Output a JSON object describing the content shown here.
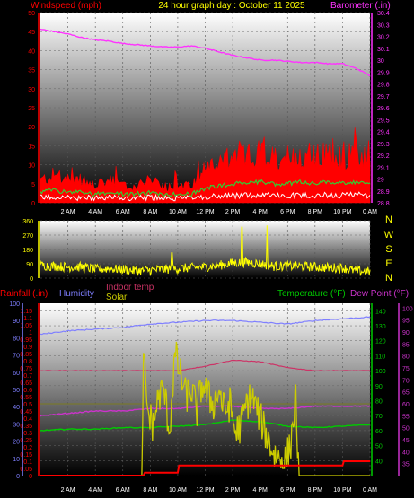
{
  "header": {
    "title": "24 hour graph day : October 11 2025",
    "left_axis_label": "Windspeed (mph)",
    "right_axis_label": "Barometer (.in)"
  },
  "colors": {
    "wind": "#ff0000",
    "gust_fill": "#ff0000",
    "wind_avg": "#33cc33",
    "wind_low": "#ffffff",
    "barometer": "#ff33ff",
    "direction": "#ffff00",
    "rain": "#ff0000",
    "humidity": "#7f7fff",
    "indoor": "#cc3366",
    "solar": "#cccc00",
    "temperature": "#00cc00",
    "dewpoint": "#cc33cc",
    "panel_top": "#ffffff",
    "panel_bottom": "#000000"
  },
  "time_axis": [
    "2 AM",
    "4 AM",
    "6 AM",
    "8 AM",
    "10 AM",
    "12 PM",
    "2 PM",
    "4 PM",
    "6 PM",
    "8 PM",
    "10 PM",
    "0 AM"
  ],
  "compass": [
    "N",
    "W",
    "S",
    "E",
    "N"
  ],
  "chart_data": [
    {
      "type": "line",
      "title": "24 hour graph day : October 11 2025",
      "ylabel": "Windspeed (mph)",
      "y2label": "Barometer (.in)",
      "xlim_hours": [
        0,
        24
      ],
      "ylim": [
        0,
        50
      ],
      "yticks": [
        0,
        5,
        10,
        15,
        20,
        25,
        30,
        35,
        40,
        45,
        50
      ],
      "y2lim": [
        28.8,
        30.4
      ],
      "y2ticks": [
        "28.8",
        "28.9",
        "29",
        "29.1",
        "29.2",
        "29.3",
        "29.4",
        "29.5",
        "29.6",
        "29.7",
        "29.8",
        "29.9",
        "30",
        "30.1",
        "30.2",
        "30.3",
        "30.4"
      ],
      "series": [
        {
          "name": "Windspeed (mph)",
          "axis": "left",
          "x": [
            0,
            1,
            2,
            3,
            4,
            5,
            6,
            7,
            8,
            9,
            10,
            11,
            12,
            13,
            14,
            15,
            16,
            17,
            18,
            19,
            20,
            21,
            22,
            23,
            24
          ],
          "values": [
            4,
            5,
            4,
            4,
            3,
            4,
            3,
            3,
            4,
            3,
            3,
            3,
            6,
            7,
            8,
            8,
            9,
            8,
            8,
            9,
            8,
            9,
            8,
            9,
            8
          ]
        },
        {
          "name": "Barometer (.in)",
          "axis": "right",
          "x": [
            0,
            1,
            2,
            3,
            4,
            5,
            6,
            7,
            8,
            9,
            10,
            11,
            12,
            13,
            14,
            15,
            16,
            17,
            18,
            19,
            20,
            21,
            22,
            23,
            24
          ],
          "values": [
            30.26,
            30.24,
            30.22,
            30.19,
            30.17,
            30.16,
            30.14,
            30.13,
            30.12,
            30.11,
            30.11,
            30.12,
            30.1,
            30.07,
            30.04,
            30.02,
            30.0,
            30.0,
            29.99,
            29.98,
            29.98,
            29.97,
            29.97,
            29.93,
            29.87
          ]
        }
      ]
    },
    {
      "type": "line",
      "title": "",
      "ylim": [
        0,
        360
      ],
      "yticks": [
        0,
        90,
        180,
        270,
        360
      ],
      "series": [
        {
          "name": "",
          "x": [
            0,
            1,
            2,
            3,
            4,
            5,
            6,
            7,
            8,
            9,
            10,
            11,
            12,
            13,
            14,
            15,
            16,
            17,
            18,
            19,
            20,
            21,
            22,
            23,
            24
          ],
          "values": [
            80,
            75,
            70,
            70,
            55,
            60,
            55,
            45,
            50,
            55,
            60,
            65,
            70,
            80,
            95,
            100,
            90,
            75,
            75,
            75,
            70,
            65,
            65,
            45,
            40
          ]
        }
      ]
    },
    {
      "type": "line",
      "title": "",
      "ylabels": [
        "Rainfall (.in)",
        "Humidity",
        "Indoor temp",
        "Solar",
        "Temperature (°F)",
        "Dew Point (°F)"
      ],
      "rain_ylim": [
        0,
        1.2
      ],
      "rain_yticks": [
        0,
        0.05,
        0.1,
        0.15,
        0.2,
        0.25,
        0.3,
        0.35,
        0.4,
        0.45,
        0.5,
        0.55,
        0.6,
        0.65,
        0.7,
        0.75,
        0.8,
        0.85,
        0.9,
        0.95,
        1,
        1.05,
        1.1,
        1.15
      ],
      "humidity_ylim": [
        0,
        100
      ],
      "humidity_yticks": [
        0,
        10,
        20,
        30,
        40,
        50,
        60,
        70,
        80,
        90,
        100
      ],
      "temp_ylim": [
        30,
        145
      ],
      "temp_yticks": [
        40,
        50,
        60,
        70,
        80,
        90,
        100,
        110,
        120,
        130,
        140
      ],
      "dew_ylim": [
        30,
        102
      ],
      "dew_yticks": [
        35,
        40,
        45,
        50,
        55,
        60,
        65,
        70,
        75,
        80,
        85,
        90,
        95,
        100
      ],
      "series": [
        {
          "name": "Rainfall (.in)",
          "x": [
            0,
            7.5,
            7.6,
            10,
            10.1,
            22,
            22.1,
            24
          ],
          "values": [
            0,
            0,
            0.02,
            0.02,
            0.07,
            0.07,
            0.1,
            0.1
          ]
        },
        {
          "name": "Humidity",
          "x": [
            0,
            2,
            4,
            6,
            8,
            10,
            12,
            14,
            16,
            18,
            20,
            22,
            24
          ],
          "values": [
            82,
            84,
            85,
            86,
            88,
            89,
            90,
            90,
            89,
            88,
            90,
            91,
            92
          ]
        },
        {
          "name": "Indoor temp",
          "x": [
            0,
            4,
            8,
            10,
            12,
            14,
            16,
            18,
            20,
            22,
            24
          ],
          "values": [
            100,
            100,
            100,
            100,
            103,
            107,
            106,
            102,
            100,
            100,
            100
          ]
        },
        {
          "name": "Solar",
          "x": [
            0,
            7.4,
            7.5,
            7.8,
            8.2,
            8.6,
            9.0,
            9.4,
            9.8,
            10.2,
            10.6,
            11.0,
            11.4,
            11.8,
            12.2,
            12.6,
            13.0,
            13.4,
            13.8,
            14.2,
            14.6,
            15.0,
            15.4,
            15.8,
            16.2,
            16.6,
            17.0,
            17.4,
            17.8,
            18.2,
            18.6,
            18.8,
            24
          ],
          "values": [
            0,
            0,
            0.85,
            0.45,
            0.35,
            0.55,
            0.6,
            0.3,
            0.85,
            0.7,
            0.55,
            0.6,
            0.45,
            0.65,
            0.55,
            0.5,
            0.6,
            0.45,
            0.5,
            0.3,
            0.35,
            0.5,
            0.55,
            0.45,
            0.35,
            0.25,
            0.15,
            0.12,
            0.1,
            0.2,
            0.55,
            0,
            0
          ]
        },
        {
          "name": "Temperature (°F)",
          "x": [
            0,
            2,
            4,
            6,
            8,
            10,
            12,
            14,
            16,
            18,
            20,
            22,
            24
          ],
          "values": [
            60,
            61,
            61,
            62,
            62,
            63,
            64,
            67,
            66,
            63,
            62,
            63,
            64
          ]
        },
        {
          "name": "Dew Point (°F)",
          "x": [
            0,
            2,
            4,
            6,
            8,
            10,
            12,
            14,
            16,
            18,
            20,
            22,
            24
          ],
          "values": [
            55,
            56,
            57,
            57,
            58,
            58,
            59,
            59,
            58,
            58,
            59,
            59,
            59
          ]
        }
      ]
    }
  ]
}
